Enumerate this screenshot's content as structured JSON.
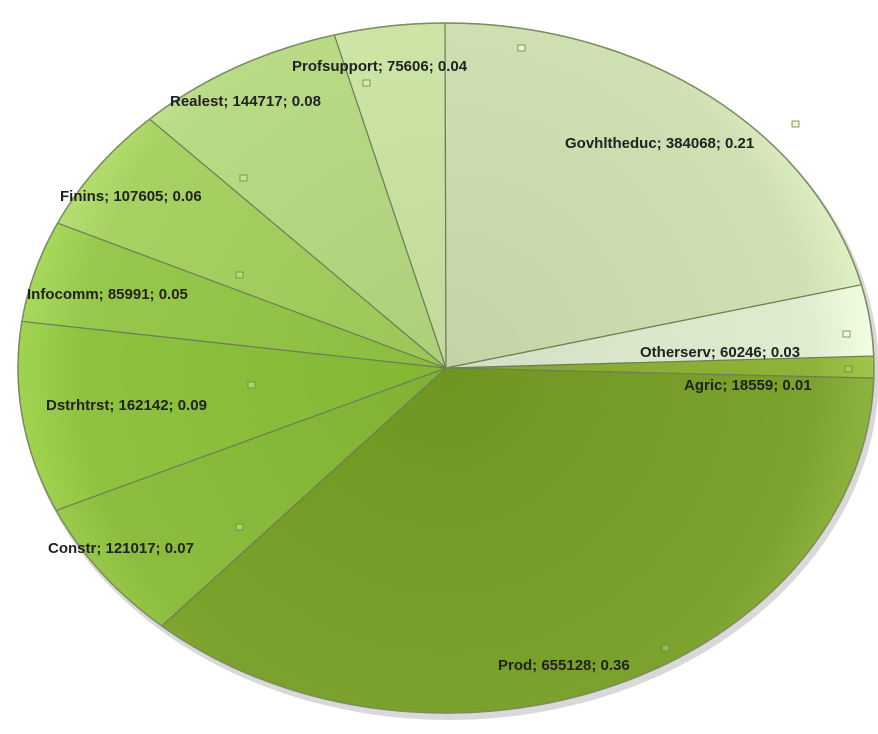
{
  "chart_data": {
    "type": "pie",
    "title": "",
    "slices": [
      {
        "name": "Agric",
        "value": 18559,
        "share": 0.01,
        "label": "Agric; 18559; 0.01",
        "color": "#8fb238"
      },
      {
        "name": "Prod",
        "value": 655128,
        "share": 0.36,
        "label": "Prod; 655128; 0.36",
        "color": "#7aa22c"
      },
      {
        "name": "Constr",
        "value": 121017,
        "share": 0.07,
        "label": "Constr; 121017; 0.07",
        "color": "#8cbd3e"
      },
      {
        "name": "Dstrhtrst",
        "value": 162142,
        "share": 0.09,
        "label": "Dstrhtrst; 162142; 0.09",
        "color": "#8ec23f"
      },
      {
        "name": "Infocomm",
        "value": 85991,
        "share": 0.05,
        "label": "Infocomm; 85991; 0.05",
        "color": "#97c84c"
      },
      {
        "name": "Finins",
        "value": 107605,
        "share": 0.06,
        "label": "Finins; 107605; 0.06",
        "color": "#a7d263"
      },
      {
        "name": "Realest",
        "value": 144717,
        "share": 0.08,
        "label": "Realest; 144717; 0.08",
        "color": "#b9db86"
      },
      {
        "name": "Profsupport",
        "value": 75606,
        "share": 0.04,
        "label": "Profsupport; 75606; 0.04",
        "color": "#cde5a6"
      },
      {
        "name": "Govhltheduc",
        "value": 384068,
        "share": 0.21,
        "label": "Govhltheduc; 384068; 0.21",
        "color": "#cfe0b3"
      },
      {
        "name": "Otherserv",
        "value": 60246,
        "share": 0.03,
        "label": "Otherserv; 60246; 0.03",
        "color": "#dfeccf"
      }
    ]
  }
}
